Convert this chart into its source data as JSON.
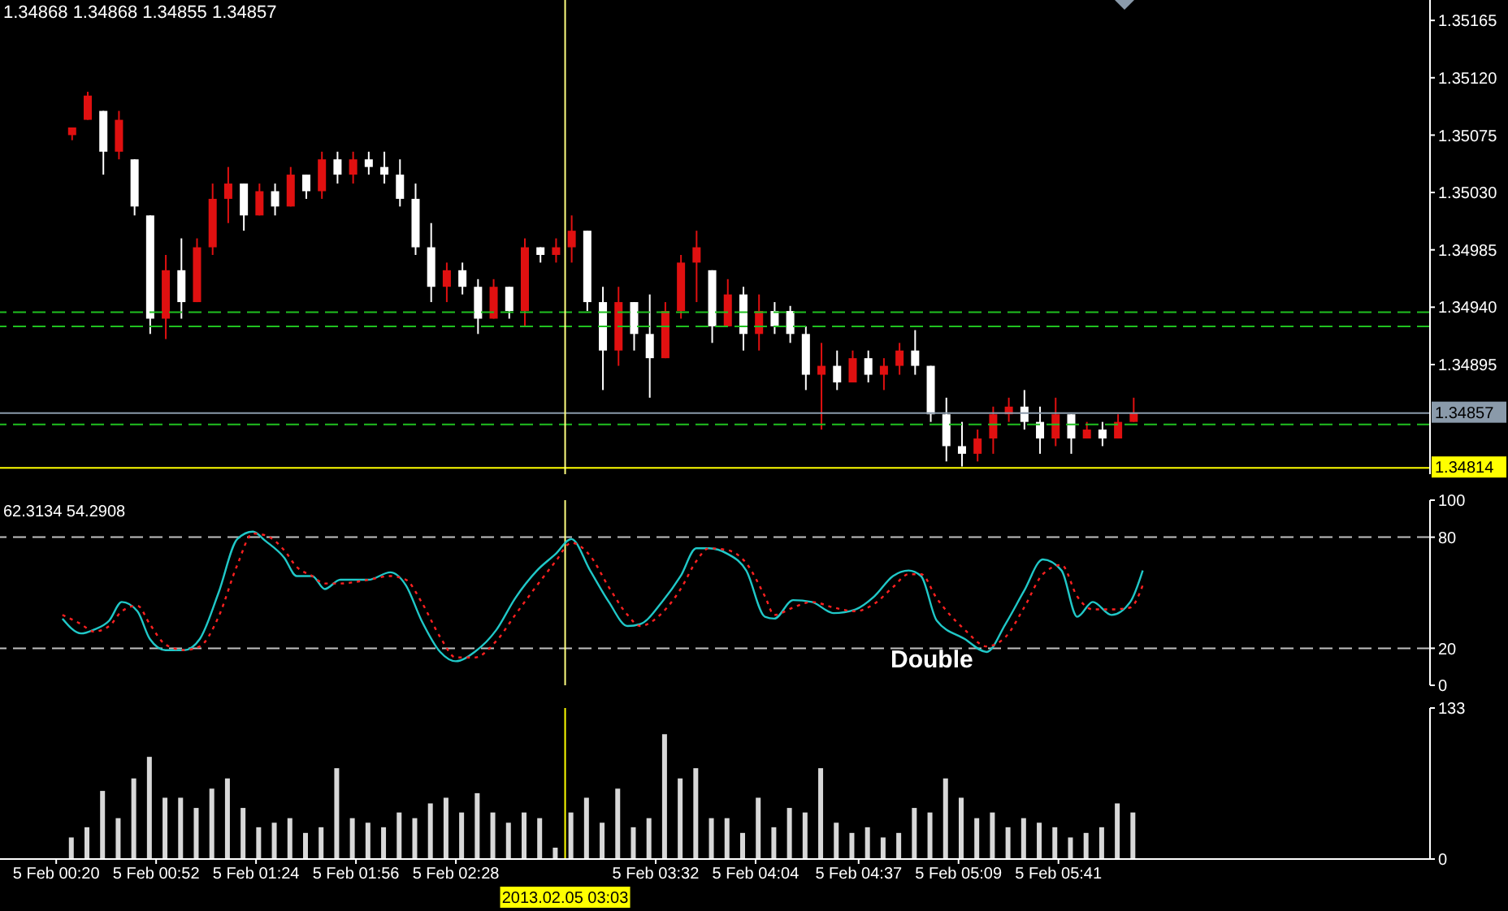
{
  "chart_data": [
    {
      "type": "candlestick",
      "annotations": [
        "1.34868 1.34868 1.34855 1.34857"
      ],
      "x": [
        "2013-02-05T00:25",
        "2013-02-05T00:30",
        "2013-02-05T00:35",
        "2013-02-05T00:40",
        "2013-02-05T00:45",
        "2013-02-05T00:50",
        "2013-02-05T00:55",
        "2013-02-05T01:00",
        "2013-02-05T01:05",
        "2013-02-05T01:10",
        "2013-02-05T01:15",
        "2013-02-05T01:20",
        "2013-02-05T01:25",
        "2013-02-05T01:30",
        "2013-02-05T01:35",
        "2013-02-05T01:40",
        "2013-02-05T01:45",
        "2013-02-05T01:50",
        "2013-02-05T01:55",
        "2013-02-05T02:00",
        "2013-02-05T02:05",
        "2013-02-05T02:10",
        "2013-02-05T02:15",
        "2013-02-05T02:20",
        "2013-02-05T02:25",
        "2013-02-05T02:30",
        "2013-02-05T02:35",
        "2013-02-05T02:40",
        "2013-02-05T02:45",
        "2013-02-05T02:50",
        "2013-02-05T02:55",
        "2013-02-05T03:00",
        "2013-02-05T03:05",
        "2013-02-05T03:10",
        "2013-02-05T03:15",
        "2013-02-05T03:20",
        "2013-02-05T03:25",
        "2013-02-05T03:30",
        "2013-02-05T03:35",
        "2013-02-05T03:40",
        "2013-02-05T03:45",
        "2013-02-05T03:50",
        "2013-02-05T03:55",
        "2013-02-05T04:00",
        "2013-02-05T04:05",
        "2013-02-05T04:10",
        "2013-02-05T04:15",
        "2013-02-05T04:20",
        "2013-02-05T04:25",
        "2013-02-05T04:30",
        "2013-02-05T04:35",
        "2013-02-05T04:40",
        "2013-02-05T04:45",
        "2013-02-05T04:50",
        "2013-02-05T04:55",
        "2013-02-05T05:00",
        "2013-02-05T05:05",
        "2013-02-05T05:10",
        "2013-02-05T05:15",
        "2013-02-05T05:20",
        "2013-02-05T05:25",
        "2013-02-05T05:30",
        "2013-02-05T05:35",
        "2013-02-05T05:40",
        "2013-02-05T05:45",
        "2013-02-05T05:50",
        "2013-02-05T05:55",
        "2013-02-05T06:00",
        "2013-02-05T06:05"
      ],
      "ohlc": [
        [
          1.35075,
          1.35081,
          1.35071,
          1.35081
        ],
        [
          1.35087,
          1.35109,
          1.35087,
          1.35106
        ],
        [
          1.35094,
          1.35094,
          1.35044,
          1.35062
        ],
        [
          1.35062,
          1.35094,
          1.35056,
          1.35087
        ],
        [
          1.35056,
          1.35056,
          1.35012,
          1.35019
        ],
        [
          1.35012,
          1.35012,
          1.34919,
          1.34931
        ],
        [
          1.34931,
          1.34981,
          1.34915,
          1.34969
        ],
        [
          1.34969,
          1.34994,
          1.34931,
          1.34944
        ],
        [
          1.34944,
          1.34994,
          1.34944,
          1.34987
        ],
        [
          1.34987,
          1.35037,
          1.34981,
          1.35025
        ],
        [
          1.35025,
          1.3505,
          1.35006,
          1.35037
        ],
        [
          1.35037,
          1.35037,
          1.35,
          1.35012
        ],
        [
          1.35012,
          1.35037,
          1.35012,
          1.35031
        ],
        [
          1.35031,
          1.35037,
          1.35012,
          1.35019
        ],
        [
          1.35019,
          1.3505,
          1.35019,
          1.35044
        ],
        [
          1.35044,
          1.35044,
          1.35025,
          1.35031
        ],
        [
          1.35031,
          1.35062,
          1.35025,
          1.35056
        ],
        [
          1.35056,
          1.35062,
          1.35037,
          1.35044
        ],
        [
          1.35044,
          1.35062,
          1.35037,
          1.35056
        ],
        [
          1.35056,
          1.35062,
          1.35044,
          1.3505
        ],
        [
          1.3505,
          1.35062,
          1.35037,
          1.35044
        ],
        [
          1.35044,
          1.35056,
          1.35019,
          1.35025
        ],
        [
          1.35025,
          1.35037,
          1.34981,
          1.34987
        ],
        [
          1.34987,
          1.35006,
          1.34944,
          1.34956
        ],
        [
          1.34956,
          1.34975,
          1.34944,
          1.34969
        ],
        [
          1.34969,
          1.34975,
          1.3495,
          1.34956
        ],
        [
          1.34956,
          1.34962,
          1.34919,
          1.34931
        ],
        [
          1.34931,
          1.34962,
          1.34931,
          1.34956
        ],
        [
          1.34956,
          1.34956,
          1.34931,
          1.34937
        ],
        [
          1.34937,
          1.34994,
          1.34925,
          1.34987
        ],
        [
          1.34987,
          1.34987,
          1.34975,
          1.34981
        ],
        [
          1.34981,
          1.34994,
          1.34975,
          1.34987
        ],
        [
          1.34987,
          1.35012,
          1.34975,
          1.35
        ],
        [
          1.35,
          1.35,
          1.34937,
          1.34944
        ],
        [
          1.34944,
          1.34956,
          1.34875,
          1.34906
        ],
        [
          1.34906,
          1.34956,
          1.34894,
          1.34944
        ],
        [
          1.34944,
          1.34944,
          1.34906,
          1.34919
        ],
        [
          1.34919,
          1.3495,
          1.34869,
          1.349
        ],
        [
          1.349,
          1.34944,
          1.349,
          1.34937
        ],
        [
          1.34937,
          1.34981,
          1.34931,
          1.34975
        ],
        [
          1.34975,
          1.35,
          1.34944,
          1.34987
        ],
        [
          1.34969,
          1.34969,
          1.34912,
          1.34925
        ],
        [
          1.34925,
          1.34962,
          1.34925,
          1.3495
        ],
        [
          1.3495,
          1.34956,
          1.34906,
          1.34919
        ],
        [
          1.34919,
          1.3495,
          1.34906,
          1.34937
        ],
        [
          1.34937,
          1.34944,
          1.34919,
          1.34925
        ],
        [
          1.34937,
          1.34941,
          1.34912,
          1.34919
        ],
        [
          1.34919,
          1.34925,
          1.34875,
          1.34887
        ],
        [
          1.34887,
          1.34912,
          1.34844,
          1.34894
        ],
        [
          1.34894,
          1.34906,
          1.34875,
          1.34881
        ],
        [
          1.34881,
          1.34906,
          1.34881,
          1.349
        ],
        [
          1.349,
          1.34906,
          1.34881,
          1.34887
        ],
        [
          1.34887,
          1.349,
          1.34875,
          1.34894
        ],
        [
          1.34894,
          1.34912,
          1.34887,
          1.34906
        ],
        [
          1.34906,
          1.34922,
          1.34887,
          1.34894
        ],
        [
          1.34894,
          1.34894,
          1.3485,
          1.34856
        ],
        [
          1.34856,
          1.34869,
          1.34819,
          1.34831
        ],
        [
          1.34831,
          1.3485,
          1.34815,
          1.34825
        ],
        [
          1.34825,
          1.34844,
          1.34819,
          1.34837
        ],
        [
          1.34837,
          1.34862,
          1.34825,
          1.34856
        ],
        [
          1.34856,
          1.34869,
          1.3485,
          1.34862
        ],
        [
          1.34862,
          1.34875,
          1.34844,
          1.3485
        ],
        [
          1.3485,
          1.34862,
          1.34825,
          1.34837
        ],
        [
          1.34837,
          1.34869,
          1.34831,
          1.34856
        ],
        [
          1.34856,
          1.34856,
          1.34825,
          1.34837
        ],
        [
          1.34837,
          1.3485,
          1.34837,
          1.34844
        ],
        [
          1.34844,
          1.3485,
          1.34831,
          1.34837
        ],
        [
          1.34837,
          1.34856,
          1.34837,
          1.3485
        ],
        [
          1.3485,
          1.34869,
          1.3485,
          1.34857
        ]
      ],
      "colors": [
        "#e01010",
        "#e01010",
        "#ffffff",
        "#e01010",
        "#ffffff",
        "#ffffff",
        "#e01010",
        "#ffffff",
        "#e01010",
        "#e01010",
        "#e01010",
        "#ffffff",
        "#e01010",
        "#ffffff",
        "#e01010",
        "#ffffff",
        "#e01010",
        "#ffffff",
        "#e01010",
        "#ffffff",
        "#ffffff",
        "#ffffff",
        "#ffffff",
        "#ffffff",
        "#e01010",
        "#ffffff",
        "#ffffff",
        "#e01010",
        "#ffffff",
        "#e01010",
        "#ffffff",
        "#e01010",
        "#e01010",
        "#ffffff",
        "#ffffff",
        "#e01010",
        "#ffffff",
        "#ffffff",
        "#e01010",
        "#e01010",
        "#e01010",
        "#ffffff",
        "#e01010",
        "#ffffff",
        "#e01010",
        "#ffffff",
        "#ffffff",
        "#ffffff",
        "#e01010",
        "#ffffff",
        "#e01010",
        "#ffffff",
        "#e01010",
        "#e01010",
        "#ffffff",
        "#ffffff",
        "#ffffff",
        "#ffffff",
        "#e01010",
        "#e01010",
        "#e01010",
        "#ffffff",
        "#ffffff",
        "#e01010",
        "#ffffff",
        "#e01010",
        "#ffffff",
        "#e01010",
        "#e01010"
      ],
      "xlim": [
        "2013-02-05T00:02",
        "2013-02-05T07:40"
      ],
      "ylim": [
        1.34809,
        1.35181
      ],
      "yticks": [
        1.35165,
        {
          "value": 1.3512,
          "label": "1.35120"
        },
        1.35075,
        {
          "value": 1.3503,
          "label": "1.35030"
        },
        1.34985,
        {
          "value": 1.3494,
          "label": "1.34940"
        },
        1.34895
      ],
      "tick_labels": "y",
      "ref_lines": [
        {
          "axis": "y",
          "value": 1.34936,
          "color": "#20c020",
          "line_style": "dashed"
        },
        {
          "axis": "y",
          "value": 1.34925,
          "color": "#20c020",
          "line_style": "dashed"
        },
        {
          "axis": "y",
          "value": 1.34848,
          "color": "#20c020",
          "line_style": "dashed"
        },
        {
          "axis": "y",
          "value": 1.34857,
          "label": "1.34857",
          "color": "#8a9aaa",
          "line_style": "solid"
        },
        {
          "axis": "y",
          "value": 1.34814,
          "label": "1.34814",
          "color": "#ffff00",
          "line_style": "solid"
        },
        {
          "axis": "x",
          "value": "2013-02-05T03:03",
          "color": "#ffff80",
          "line_style": "solid"
        }
      ]
    },
    {
      "type": "line",
      "annotations": [
        "62.3134 54.2908",
        "Double"
      ],
      "x": [
        "2013-02-05T00:22",
        "2013-02-05T00:28",
        "2013-02-05T00:32",
        "2013-02-05T00:37",
        "2013-02-05T00:41",
        "2013-02-05T00:46",
        "2013-02-05T00:50",
        "2013-02-05T00:55",
        "2013-02-05T01:01",
        "2013-02-05T01:06",
        "2013-02-05T01:12",
        "2013-02-05T01:18",
        "2013-02-05T01:23",
        "2013-02-05T01:27",
        "2013-02-05T01:33",
        "2013-02-05T01:37",
        "2013-02-05T01:42",
        "2013-02-05T01:46",
        "2013-02-05T01:51",
        "2013-02-05T02:00",
        "2013-02-05T02:07",
        "2013-02-05T02:12",
        "2013-02-05T02:17",
        "2013-02-05T02:23",
        "2013-02-05T02:28",
        "2013-02-05T02:34",
        "2013-02-05T02:41",
        "2013-02-05T02:47",
        "2013-02-05T02:54",
        "2013-02-05T03:00",
        "2013-02-05T03:05",
        "2013-02-05T03:11",
        "2013-02-05T03:17",
        "2013-02-05T03:23",
        "2013-02-05T03:27",
        "2013-02-05T03:34",
        "2013-02-05T03:40",
        "2013-02-05T03:45",
        "2013-02-05T03:49",
        "2013-02-05T03:55",
        "2013-02-05T04:01",
        "2013-02-05T04:07",
        "2013-02-05T04:10",
        "2013-02-05T04:16",
        "2013-02-05T04:22",
        "2013-02-05T04:29",
        "2013-02-05T04:36",
        "2013-02-05T04:42",
        "2013-02-05T04:48",
        "2013-02-05T04:53",
        "2013-02-05T04:57",
        "2013-02-05T05:02",
        "2013-02-05T05:11",
        "2013-02-05T05:18",
        "2013-02-05T05:24",
        "2013-02-05T05:30",
        "2013-02-05T05:36",
        "2013-02-05T05:42",
        "2013-02-05T05:47",
        "2013-02-05T05:52",
        "2013-02-05T05:58",
        "2013-02-05T06:04",
        "2013-02-05T06:08"
      ],
      "series": [
        {
          "color": "#20c8c8",
          "line_style": "solid",
          "values": [
            36,
            28,
            30,
            35,
            45,
            40,
            25,
            19,
            19,
            25,
            50,
            79,
            83,
            78,
            69,
            59,
            59,
            52,
            57,
            57,
            61,
            54,
            35,
            18,
            13,
            18,
            30,
            47,
            62,
            71,
            79,
            62,
            45,
            32,
            33,
            45,
            59,
            74,
            74,
            71,
            62,
            37,
            36,
            46,
            45,
            39,
            41,
            48,
            59,
            62,
            59,
            35,
            25,
            18,
            33,
            51,
            68,
            62,
            37,
            45,
            38,
            45,
            62
          ]
        },
        {
          "color": "#ff2020",
          "line_style": "dotted",
          "values": [
            38,
            33,
            29,
            32,
            40,
            43,
            33,
            22,
            19,
            21,
            37,
            65,
            82,
            81,
            73,
            64,
            59,
            55,
            55,
            57,
            59,
            57,
            45,
            26,
            15,
            15,
            24,
            38,
            54,
            67,
            77,
            70,
            53,
            38,
            32,
            39,
            52,
            67,
            74,
            73,
            66,
            48,
            38,
            42,
            45,
            42,
            40,
            44,
            53,
            60,
            60,
            47,
            30,
            21,
            26,
            42,
            60,
            65,
            48,
            41,
            41,
            42,
            54
          ]
        }
      ],
      "xlim": [
        "2013-02-05T00:02",
        "2013-02-05T07:40"
      ],
      "ylim": [
        0,
        100
      ],
      "yticks": [
        0,
        20,
        80,
        100
      ],
      "tick_labels": "y",
      "ref_lines": [
        {
          "axis": "y",
          "value": 80,
          "color": "#c0c0c0",
          "line_style": "dashed"
        },
        {
          "axis": "y",
          "value": 20,
          "color": "#c0c0c0",
          "line_style": "dashed"
        },
        {
          "axis": "x",
          "value": "2013-02-05T03:03",
          "color": "#ffff80",
          "line_style": "solid"
        }
      ]
    },
    {
      "type": "bar",
      "color": "#d8d8d8",
      "x": [
        "2013-02-05T00:25",
        "2013-02-05T00:30",
        "2013-02-05T00:35",
        "2013-02-05T00:40",
        "2013-02-05T00:45",
        "2013-02-05T00:50",
        "2013-02-05T00:55",
        "2013-02-05T01:00",
        "2013-02-05T01:05",
        "2013-02-05T01:10",
        "2013-02-05T01:15",
        "2013-02-05T01:20",
        "2013-02-05T01:25",
        "2013-02-05T01:30",
        "2013-02-05T01:35",
        "2013-02-05T01:40",
        "2013-02-05T01:45",
        "2013-02-05T01:50",
        "2013-02-05T01:55",
        "2013-02-05T02:00",
        "2013-02-05T02:05",
        "2013-02-05T02:10",
        "2013-02-05T02:15",
        "2013-02-05T02:20",
        "2013-02-05T02:25",
        "2013-02-05T02:30",
        "2013-02-05T02:35",
        "2013-02-05T02:40",
        "2013-02-05T02:45",
        "2013-02-05T02:50",
        "2013-02-05T02:55",
        "2013-02-05T03:00",
        "2013-02-05T03:05",
        "2013-02-05T03:10",
        "2013-02-05T03:15",
        "2013-02-05T03:20",
        "2013-02-05T03:25",
        "2013-02-05T03:30",
        "2013-02-05T03:35",
        "2013-02-05T03:40",
        "2013-02-05T03:45",
        "2013-02-05T03:50",
        "2013-02-05T03:55",
        "2013-02-05T04:00",
        "2013-02-05T04:05",
        "2013-02-05T04:10",
        "2013-02-05T04:15",
        "2013-02-05T04:20",
        "2013-02-05T04:25",
        "2013-02-05T04:30",
        "2013-02-05T04:35",
        "2013-02-05T04:40",
        "2013-02-05T04:45",
        "2013-02-05T04:50",
        "2013-02-05T04:55",
        "2013-02-05T05:00",
        "2013-02-05T05:05",
        "2013-02-05T05:10",
        "2013-02-05T05:15",
        "2013-02-05T05:20",
        "2013-02-05T05:25",
        "2013-02-05T05:30",
        "2013-02-05T05:35",
        "2013-02-05T05:40",
        "2013-02-05T05:45",
        "2013-02-05T05:50",
        "2013-02-05T05:55",
        "2013-02-05T06:00",
        "2013-02-05T06:05"
      ],
      "values": [
        19,
        28,
        60,
        36,
        71,
        90,
        54,
        54,
        45,
        62,
        71,
        45,
        28,
        32,
        36,
        23,
        28,
        80,
        36,
        32,
        28,
        41,
        36,
        49,
        54,
        41,
        58,
        41,
        32,
        41,
        36,
        10,
        41,
        54,
        32,
        62,
        28,
        36,
        110,
        71,
        80,
        36,
        36,
        23,
        54,
        28,
        45,
        41,
        80,
        32,
        23,
        28,
        19,
        23,
        45,
        41,
        71,
        54,
        36,
        41,
        28,
        36,
        32,
        28,
        19,
        23,
        28,
        49,
        41
      ],
      "xlim": [
        "2013-02-05T00:02",
        "2013-02-05T07:40"
      ],
      "ylim": [
        0,
        133
      ],
      "yticks": [
        0,
        133
      ],
      "xticks": [
        {
          "value": "2013-02-05T00:20",
          "label": "5 Feb 00:20"
        },
        {
          "value": "2013-02-05T00:52",
          "label": "5 Feb 00:52"
        },
        {
          "value": "2013-02-05T01:24",
          "label": "5 Feb 01:24"
        },
        {
          "value": "2013-02-05T01:56",
          "label": "5 Feb 01:56"
        },
        {
          "value": "2013-02-05T02:28",
          "label": "5 Feb 02:28"
        },
        {
          "value": "2013-02-05T03:32",
          "label": "5 Feb 03:32"
        },
        {
          "value": "2013-02-05T04:04",
          "label": "5 Feb 04:04"
        },
        {
          "value": "2013-02-05T04:37",
          "label": "5 Feb 04:37"
        },
        {
          "value": "2013-02-05T05:09",
          "label": "5 Feb 05:09"
        },
        {
          "value": "2013-02-05T05:41",
          "label": "5 Feb 05:41"
        }
      ],
      "ref_lines": [
        {
          "axis": "x",
          "value": "2013-02-05T03:03",
          "label": "2013.02.05 03:03",
          "color": "#ffff00",
          "line_style": "solid"
        }
      ]
    }
  ]
}
